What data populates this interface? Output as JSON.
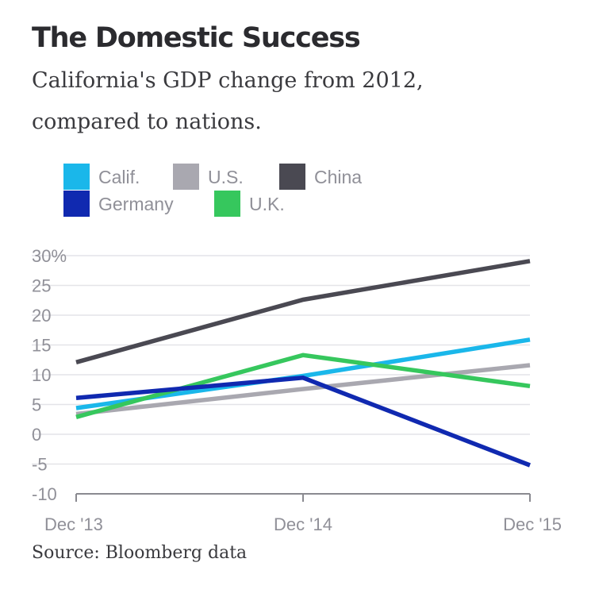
{
  "chart_data": {
    "type": "line",
    "title": "The Domestic Success",
    "subtitle_lines": [
      "California's GDP change from 2012,",
      "compared to nations."
    ],
    "x": [
      "Dec '13",
      "Dec '14",
      "Dec '15"
    ],
    "y_tick_labels": [
      "30%",
      "25",
      "20",
      "15",
      "10",
      "5",
      "0",
      "-5",
      "-10"
    ],
    "ylim": [
      -10,
      30
    ],
    "series": [
      {
        "name": "Calif.",
        "color": "#1ab7ea",
        "values": [
          4.4,
          9.8,
          15.9
        ]
      },
      {
        "name": "U.S.",
        "color": "#a9a8b0",
        "values": [
          3.4,
          7.6,
          11.6
        ]
      },
      {
        "name": "China",
        "color": "#4a4952",
        "values": [
          12.1,
          22.6,
          29.1
        ]
      },
      {
        "name": "Germany",
        "color": "#1029b0",
        "values": [
          6.1,
          9.5,
          -5.2
        ]
      },
      {
        "name": "U.K.",
        "color": "#36c75d",
        "values": [
          2.9,
          13.3,
          8.1
        ]
      }
    ],
    "source": "Source: Bloomberg data"
  }
}
